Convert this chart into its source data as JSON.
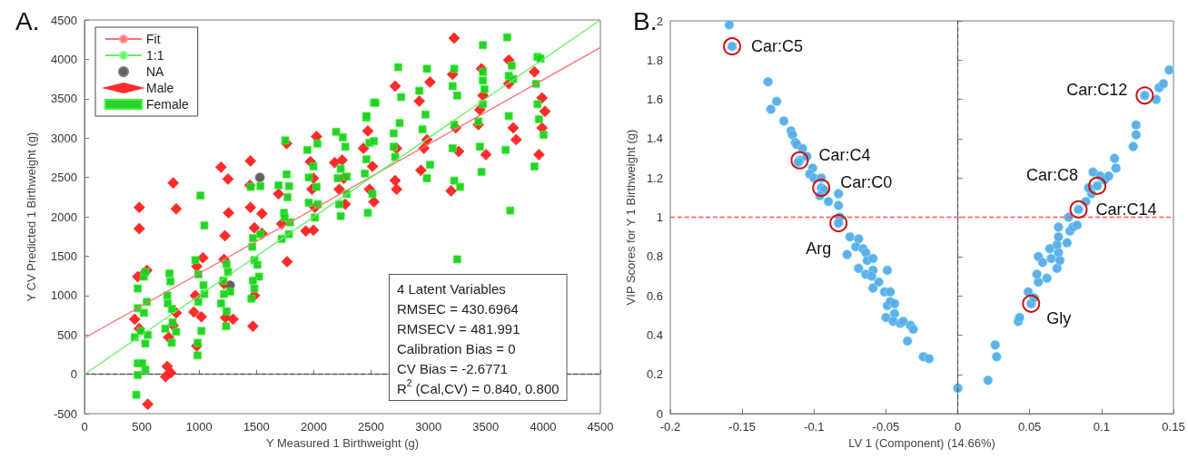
{
  "chart_data": [
    {
      "type": "scatter",
      "title": "A.",
      "xlabel": "Y Measured 1 Birthweight (g)",
      "ylabel": "Y CV Predicted 1 Birthweight (g)",
      "xlim": [
        0,
        4500
      ],
      "xticks": [
        0,
        500,
        1000,
        1500,
        2000,
        2500,
        3000,
        3500,
        4000,
        4500
      ],
      "ylim": [
        -500,
        4500
      ],
      "yticks": [
        -500,
        0,
        500,
        1000,
        1500,
        2000,
        2500,
        3000,
        3500,
        4000,
        4500
      ],
      "legend": "top left",
      "series": [
        {
          "name": "Fit",
          "type": "line",
          "marker": "none",
          "color": "#ff7070",
          "x": [
            0,
            4500
          ],
          "values": [
            460,
            4150
          ]
        },
        {
          "name": "1:1",
          "type": "line",
          "marker": "none",
          "color": "#66ee66",
          "x": [
            0,
            4500
          ],
          "values": [
            0,
            4500
          ]
        },
        {
          "name": "NA",
          "marker": "circle",
          "color": "#5a5a5a",
          "x": [
            1530,
            1270
          ],
          "values": [
            2500,
            1130
          ]
        },
        {
          "name": "Male",
          "marker": "diamond",
          "color": "#ff2020",
          "x": [
            478,
            478,
            438,
            465,
            518,
            544,
            478,
            552,
            774,
            800,
            722,
            708,
            753,
            800,
            734,
            774,
            1033,
            980,
            954,
            1020,
            980,
            967,
            1191,
            1252,
            1257,
            1225,
            1217,
            1217,
            1296,
            1230,
            1448,
            1443,
            1448,
            1548,
            1482,
            1548,
            1508,
            1482,
            1469,
            1767,
            1720,
            1764,
            1693,
            1931,
            1997,
            1984,
            2024,
            1997,
            1971,
            2010,
            2182,
            2248,
            2222,
            2275,
            2262,
            2472,
            2433,
            2512,
            2525,
            2486,
            3225,
            2710,
            2723,
            2723,
            2710,
            2961,
            2935,
            3014,
            2921,
            2988,
            3211,
            3198,
            3238,
            3264,
            3463,
            3476,
            3436,
            3502,
            3449,
            3701,
            3740,
            3766,
            3701,
            3925,
            3991,
            4017,
            3964,
            3991
          ],
          "values": [
            2120,
            1850,
            700,
            1240,
            1280,
            1320,
            580,
            -380,
            2430,
            2100,
            100,
            -30,
            20,
            780,
            470,
            620,
            1480,
            1370,
            790,
            730,
            360,
            1000,
            2630,
            2480,
            2050,
            1760,
            1460,
            1150,
            700,
            720,
            2710,
            2400,
            2120,
            2040,
            1860,
            1790,
            null,
            1000,
            610,
            1430,
            1910,
            2930,
            2290,
            1820,
            1830,
            2350,
            3020,
            2490,
            2700,
            2120,
            2690,
            2720,
            2350,
            2160,
            2490,
            3090,
            2870,
            2640,
            2190,
            2350,
            4270,
            3660,
            2870,
            2350,
            2460,
            2870,
            2590,
            3710,
            3470,
            2980,
            3810,
            2330,
            3130,
            2830,
            3880,
            3540,
            3170,
            2790,
            3360,
            3990,
            3130,
            2980,
            3690,
            3840,
            3510,
            3340,
            2790,
            3130
          ]
        },
        {
          "name": "Female",
          "marker": "square",
          "color": "#22cc22",
          "x": [
            452,
            465,
            465,
            531,
            505,
            438,
            531,
            552,
            491,
            465,
            518,
            544,
            465,
            518,
            531,
            742,
            750,
            722,
            727,
            763,
            769,
            705,
            800,
            761,
            1012,
            1046,
            967,
            993,
            1038,
            1046,
            993,
            1020,
            988,
            986,
            1239,
            1252,
            1212,
            1270,
            1217,
            1191,
            1239,
            1236,
            1450,
            1535,
            1469,
            1535,
            1464,
            1482,
            1522,
            1469,
            1482,
            1456,
            1508,
            1751,
            1764,
            1693,
            1785,
            1772,
            1741,
            1793,
            1720,
            1783,
            1746,
            1944,
            2031,
            1957,
            1997,
            2024,
            1957,
            2010,
            2036,
            2195,
            2253,
            2275,
            2235,
            2209,
            2288,
            2222,
            2235,
            2288,
            2525,
            2459,
            2459,
            2486,
            2446,
            2472,
            2512,
            2525,
            2736,
            2538,
            2459,
            2763,
            2697,
            2710,
            2749,
            2697,
            2987,
            2921,
            2974,
            2987,
            3014,
            2948,
            3225,
            3211,
            3251,
            3225,
            3211,
            3225,
            3277,
            3251,
            3476,
            3476,
            3476,
            3489,
            3476,
            3436,
            3463,
            3449,
            3687,
            3727,
            3701,
            3740,
            3701,
            3714,
            3674,
            3952,
            3978,
            3938,
            3952,
            3925,
            4004,
            3964
          ],
          "values": [
            -260,
            -10,
            140,
            60,
            140,
            470,
            390,
            500,
            550,
            840,
            780,
            920,
            1090,
            1240,
            1300,
            1280,
            1180,
            1000,
            900,
            830,
            660,
            580,
            540,
            400,
            2270,
            1890,
            1450,
            1270,
            1130,
            1020,
            920,
            550,
            400,
            240,
            1400,
            1300,
            1190,
            1050,
            1020,
            900,
            800,
            610,
            2380,
            2390,
            1730,
            1780,
            1620,
            1450,
            1240,
            1190,
            1090,
            960,
            1390,
            2970,
            2540,
            2400,
            2390,
            2250,
            2050,
            1930,
            1720,
            1780,
            1990,
            2850,
            2930,
            2500,
            2640,
            2380,
            2180,
            1990,
            2160,
            3080,
            3010,
            2890,
            2610,
            2490,
            2510,
            2160,
            2010,
            2290,
            3450,
            3260,
            2730,
            2940,
            2550,
            2050,
            2290,
            2960,
            3900,
            3450,
            3280,
            3520,
            3060,
            2760,
            3190,
            2890,
            3880,
            3600,
            3300,
            2490,
            2660,
            3110,
            3880,
            3660,
            3540,
            3170,
            2870,
            2460,
            2380,
            1460,
            4180,
            3840,
            3730,
            3620,
            3430,
            3210,
            2570,
            2890,
            4280,
            3920,
            3790,
            3750,
            3280,
            2080,
            2850,
            4030,
            4010,
            3690,
            3430,
            2640,
            3040,
            3240
          ]
        }
      ],
      "ref_lines": [
        {
          "axis": "y",
          "value": 0,
          "color": "#555555",
          "line_style": "dashed"
        }
      ],
      "annotations": [
        "4 Latent Variables",
        "RMSEC = 430.6964",
        "RMSECV = 481.991",
        "Calibration Bias = 0",
        "CV Bias = -2.6771",
        "R$^{2}$ (Cal,CV) = 0.840, 0.800"
      ]
    },
    {
      "type": "scatter",
      "title": "B.",
      "xlabel": "LV 1 (Component) (14.66%)",
      "ylabel": "VIP Scores for Y 1 Birthweight (g)",
      "xlim": [
        -0.2,
        0.15
      ],
      "xticks": [
        -0.2,
        -0.15,
        -0.1,
        -0.05,
        0,
        0.05,
        0.1,
        0.15
      ],
      "ylim": [
        0,
        2
      ],
      "yticks": [
        0,
        0.2,
        0.4,
        0.6,
        0.8,
        1,
        1.2,
        1.4,
        1.6,
        1.8,
        2
      ],
      "marker": "circle",
      "series": [
        {
          "color": "#5aaae6",
          "x": [
            -0.159,
            -0.157,
            -0.132,
            -0.126,
            -0.13,
            -0.121,
            -0.116,
            -0.115,
            -0.113,
            -0.112,
            -0.108,
            -0.11,
            -0.111,
            -0.105,
            -0.101,
            -0.103,
            -0.1,
            -0.095,
            -0.095,
            -0.093,
            -0.096,
            -0.09,
            -0.083,
            -0.083,
            -0.082,
            -0.083,
            -0.075,
            -0.069,
            -0.071,
            -0.077,
            -0.066,
            -0.064,
            -0.063,
            -0.059,
            -0.069,
            -0.064,
            -0.059,
            -0.06,
            -0.049,
            -0.059,
            -0.055,
            -0.051,
            -0.047,
            -0.049,
            -0.047,
            -0.044,
            -0.05,
            -0.044,
            -0.045,
            -0.04,
            -0.038,
            -0.033,
            -0.031,
            -0.035,
            -0.024,
            -0.02,
            0,
            0.021,
            0.027,
            0.026,
            0.042,
            0.043,
            0.051,
            0.049,
            0.053,
            0.056,
            0.055,
            0.062,
            0.056,
            0.059,
            0.064,
            0.065,
            0.069,
            0.07,
            0.071,
            0.069,
            0.07,
            0.07,
            0.076,
            0.078,
            0.08,
            0.083,
            0.077,
            0.084,
            0.089,
            0.093,
            0.091,
            0.097,
            0.094,
            0.099,
            0.102,
            0.105,
            0.11,
            0.109,
            0.122,
            0.124,
            0.124,
            0.13,
            0.138,
            0.14,
            0.143,
            0.147
          ],
          "values": [
            1.98,
            1.87,
            1.69,
            1.59,
            1.55,
            1.49,
            1.44,
            1.42,
            1.38,
            1.37,
            1.35,
            1.29,
            1.28,
            1.31,
            1.25,
            1.22,
            1.2,
            1.2,
            1.15,
            1.14,
            1.11,
            1.08,
            1.12,
            1.06,
            1.0,
            0.97,
            0.9,
            0.89,
            0.85,
            0.81,
            0.84,
            0.82,
            0.78,
            0.79,
            0.74,
            0.71,
            0.73,
            0.7,
            0.73,
            0.64,
            0.67,
            0.62,
            0.62,
            0.55,
            0.57,
            0.56,
            0.49,
            0.51,
            0.47,
            0.46,
            0.47,
            0.45,
            0.43,
            0.37,
            0.29,
            0.28,
            0.13,
            0.17,
            0.29,
            0.35,
            0.47,
            0.49,
            0.56,
            0.62,
            0.59,
            0.67,
            0.71,
            0.69,
            0.8,
            0.77,
            0.84,
            0.79,
            0.74,
            0.82,
            0.78,
            0.86,
            0.9,
            0.95,
            0.87,
            0.93,
            0.95,
            0.96,
            1.0,
            1.04,
            1.08,
            1.12,
            1.15,
            1.16,
            1.23,
            1.21,
            1.19,
            1.21,
            1.25,
            1.3,
            1.36,
            1.42,
            1.47,
            1.62,
            1.6,
            1.66,
            1.68,
            1.75
          ]
        }
      ],
      "ref_lines": [
        {
          "axis": "x",
          "value": 0,
          "color": "#555555",
          "line_style": "dashed"
        },
        {
          "axis": "y",
          "value": 1,
          "color": "#ff5a5a",
          "line_style": "dashed"
        }
      ],
      "annotations": [
        {
          "text": "Car:C5",
          "x": -0.157,
          "y": 1.87
        },
        {
          "text": "Car:C4",
          "x": -0.11,
          "y": 1.29
        },
        {
          "text": "Car:C0",
          "x": -0.095,
          "y": 1.15
        },
        {
          "text": "Arg",
          "x": -0.083,
          "y": 0.97
        },
        {
          "text": "Car:C12",
          "x": 0.13,
          "y": 1.62
        },
        {
          "text": "Car:C8",
          "x": 0.097,
          "y": 1.16
        },
        {
          "text": "Car:C14",
          "x": 0.084,
          "y": 1.04
        },
        {
          "text": "Gly",
          "x": 0.051,
          "y": 0.56
        }
      ]
    }
  ]
}
